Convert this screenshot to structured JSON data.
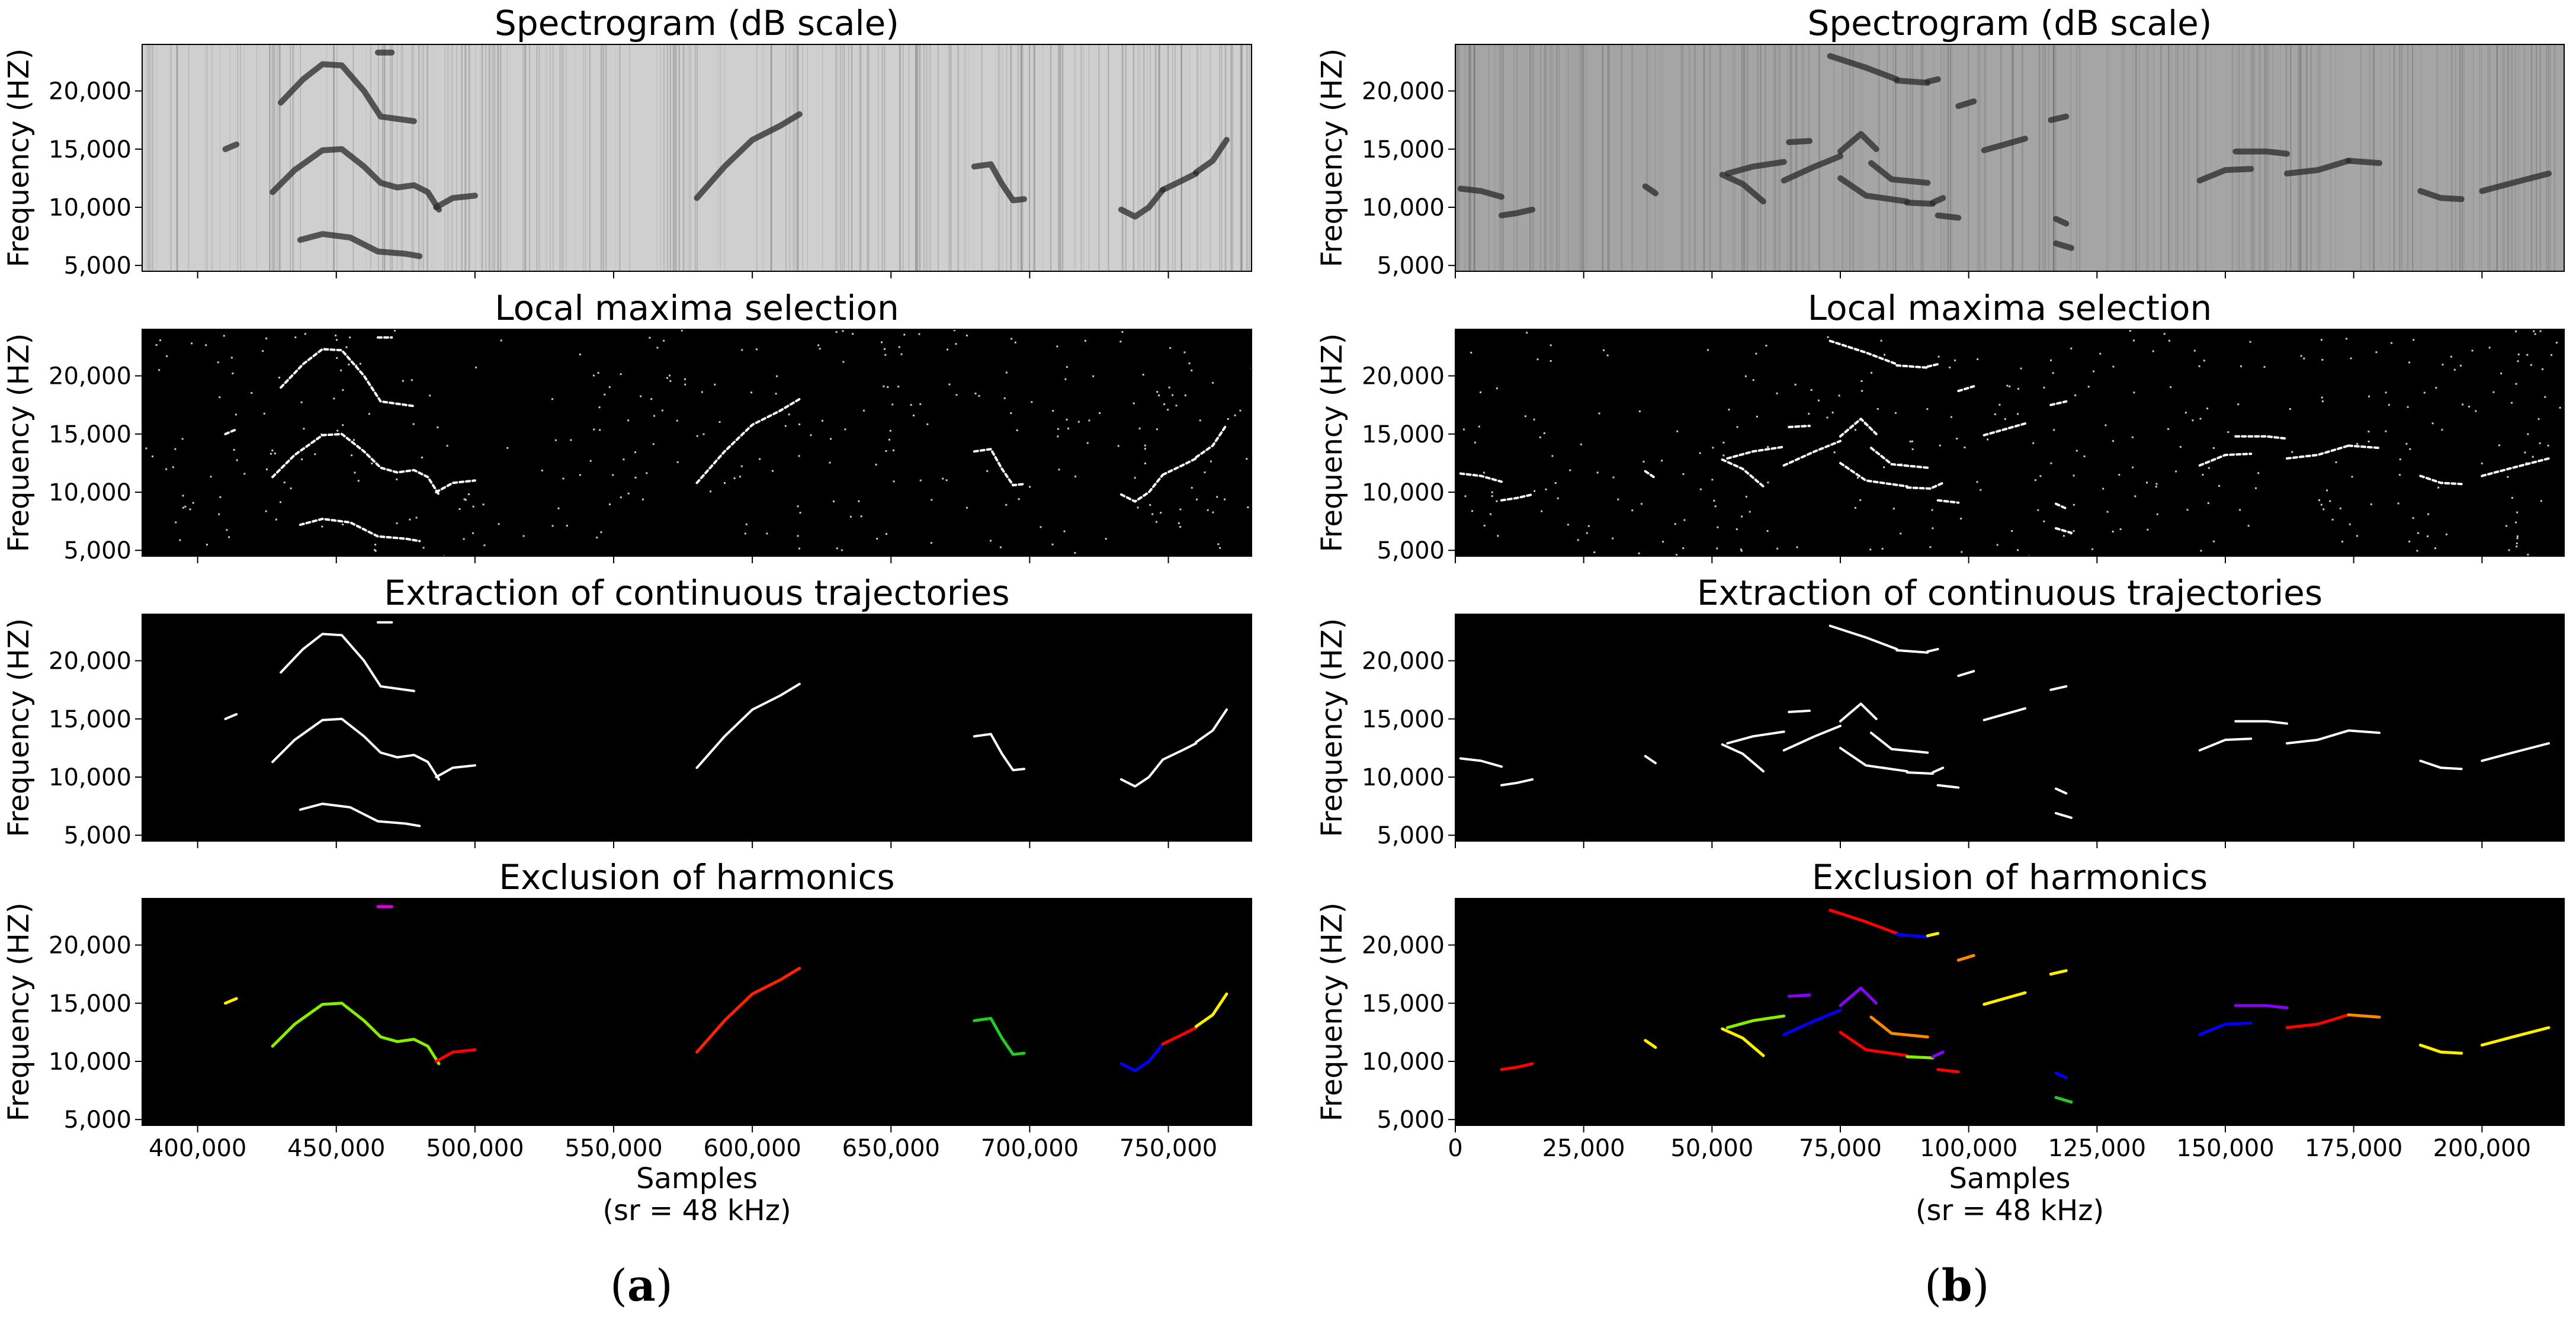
{
  "figure": {
    "caption_a": "a",
    "caption_b": "b",
    "colors": {
      "spectrogram_bg": "#cfcfcf",
      "spectrogram_trace": "#2a2a2a",
      "dark_bg": "#000000",
      "trace_white": "#ffffff",
      "harmonic_palette": [
        "#ff0000",
        "#ffee00",
        "#88ee00",
        "#22cc22",
        "#0000ff",
        "#8800ff",
        "#ff8800"
      ]
    }
  },
  "chart_data": [
    {
      "panel": "a",
      "type": "spectrogram",
      "xlim": [
        380000,
        780000
      ],
      "x_ticks": [
        400000,
        450000,
        500000,
        550000,
        600000,
        650000,
        700000,
        750000
      ],
      "x_tick_labels": [
        "400,000",
        "450,000",
        "500,000",
        "550,000",
        "600,000",
        "650,000",
        "700,000",
        "750,000"
      ],
      "xlabel": "Samples",
      "xlabel2": "(sr = 48 kHz)",
      "ylim": [
        4500,
        24000
      ],
      "y_ticks": [
        5000,
        10000,
        15000,
        20000
      ],
      "y_tick_labels": [
        "5,000",
        "10,000",
        "15,000",
        "20,000"
      ],
      "ylabel": "Frequency (HZ)",
      "subplots": [
        {
          "title": "Spectrogram (dB scale)",
          "style": "spectrogram"
        },
        {
          "title": "Local maxima selection",
          "style": "maxima"
        },
        {
          "title": "Extraction of continuous trajectories",
          "style": "trajectories"
        },
        {
          "title": "Exclusion of harmonics",
          "style": "harmonics"
        }
      ],
      "trajectories": [
        {
          "name": "a1",
          "color": "#ffee00",
          "harmonic": false,
          "points": [
            [
              410000,
              15000
            ],
            [
              412000,
              15200
            ],
            [
              414000,
              15400
            ]
          ]
        },
        {
          "name": "a2",
          "color": "#88ee00",
          "harmonic": false,
          "points": [
            [
              427000,
              11300
            ],
            [
              435000,
              13200
            ],
            [
              445000,
              14900
            ],
            [
              452000,
              15000
            ],
            [
              460000,
              13500
            ],
            [
              466000,
              12100
            ],
            [
              472000,
              11700
            ],
            [
              478000,
              11900
            ],
            [
              483000,
              11300
            ],
            [
              487000,
              9800
            ]
          ]
        },
        {
          "name": "a3",
          "color": "#dd00dd",
          "harmonic": false,
          "points": [
            [
              465000,
              23300
            ],
            [
              470000,
              23300
            ]
          ]
        },
        {
          "name": "a4",
          "color": "#ff0000",
          "harmonic": false,
          "points": [
            [
              486000,
              10000
            ],
            [
              492000,
              10800
            ],
            [
              500000,
              11000
            ]
          ]
        },
        {
          "name": "a5",
          "color": "#ffffff",
          "harmonic": true,
          "points": [
            [
              430000,
              19000
            ],
            [
              438000,
              21000
            ],
            [
              445000,
              22300
            ],
            [
              452000,
              22200
            ],
            [
              460000,
              20000
            ],
            [
              466000,
              17800
            ],
            [
              478000,
              17400
            ]
          ]
        },
        {
          "name": "a6",
          "color": "#ffffff",
          "harmonic": true,
          "points": [
            [
              437000,
              7200
            ],
            [
              445000,
              7700
            ],
            [
              455000,
              7400
            ],
            [
              465000,
              6200
            ],
            [
              475000,
              6000
            ],
            [
              480000,
              5800
            ]
          ]
        },
        {
          "name": "a7",
          "color": "#ff2200",
          "harmonic": false,
          "points": [
            [
              580000,
              10800
            ],
            [
              590000,
              13500
            ],
            [
              600000,
              15800
            ],
            [
              610000,
              17000
            ],
            [
              617000,
              18000
            ]
          ]
        },
        {
          "name": "a8",
          "color": "#22cc22",
          "harmonic": false,
          "points": [
            [
              680000,
              13500
            ],
            [
              686000,
              13700
            ],
            [
              690000,
              12000
            ],
            [
              694000,
              10600
            ],
            [
              698000,
              10700
            ]
          ]
        },
        {
          "name": "a9",
          "color": "#0000ff",
          "harmonic": false,
          "points": [
            [
              733000,
              9800
            ],
            [
              738000,
              9200
            ],
            [
              743000,
              10000
            ],
            [
              748000,
              11500
            ]
          ]
        },
        {
          "name": "a10",
          "color": "#ff0000",
          "harmonic": false,
          "points": [
            [
              748000,
              11500
            ],
            [
              755000,
              12300
            ],
            [
              760000,
              12900
            ]
          ]
        },
        {
          "name": "a11",
          "color": "#ffee00",
          "harmonic": false,
          "points": [
            [
              760000,
              13000
            ],
            [
              766000,
              14000
            ],
            [
              771000,
              15800
            ]
          ]
        }
      ]
    },
    {
      "panel": "b",
      "type": "spectrogram",
      "xlim": [
        0,
        216000
      ],
      "x_ticks": [
        0,
        25000,
        50000,
        75000,
        100000,
        125000,
        150000,
        175000,
        200000
      ],
      "x_tick_labels": [
        "0",
        "25,000",
        "50,000",
        "75,000",
        "100,000",
        "125,000",
        "150,000",
        "175,000",
        "200,000"
      ],
      "xlabel": "Samples",
      "xlabel2": "(sr = 48 kHz)",
      "ylim": [
        4500,
        24000
      ],
      "y_ticks": [
        5000,
        10000,
        15000,
        20000
      ],
      "y_tick_labels": [
        "5,000",
        "10,000",
        "15,000",
        "20,000"
      ],
      "ylabel": "Frequency (HZ)",
      "subplots": [
        {
          "title": "Spectrogram (dB scale)",
          "style": "spectrogram"
        },
        {
          "title": "Local maxima selection",
          "style": "maxima"
        },
        {
          "title": "Extraction of continuous trajectories",
          "style": "trajectories"
        },
        {
          "title": "Exclusion of harmonics",
          "style": "harmonics"
        }
      ],
      "trajectories": [
        {
          "name": "b1",
          "color": "#ff0000",
          "harmonic": false,
          "points": [
            [
              9000,
              9300
            ],
            [
              12000,
              9500
            ],
            [
              15000,
              9800
            ]
          ]
        },
        {
          "name": "b1h",
          "color": "#ffffff",
          "harmonic": true,
          "points": [
            [
              1000,
              11600
            ],
            [
              5000,
              11400
            ],
            [
              9000,
              10900
            ]
          ]
        },
        {
          "name": "b2",
          "color": "#ffee00",
          "harmonic": false,
          "points": [
            [
              37000,
              11800
            ],
            [
              39000,
              11200
            ]
          ]
        },
        {
          "name": "b3",
          "color": "#ffee00",
          "harmonic": false,
          "points": [
            [
              52000,
              12800
            ],
            [
              56000,
              12000
            ],
            [
              60000,
              10500
            ]
          ]
        },
        {
          "name": "b4",
          "color": "#88ee00",
          "harmonic": false,
          "points": [
            [
              53000,
              12900
            ],
            [
              58000,
              13500
            ],
            [
              64000,
              13900
            ]
          ]
        },
        {
          "name": "b5",
          "color": "#0000ff",
          "harmonic": false,
          "points": [
            [
              64000,
              12300
            ],
            [
              70000,
              13500
            ],
            [
              75000,
              14400
            ]
          ]
        },
        {
          "name": "b6",
          "color": "#8800ff",
          "harmonic": false,
          "points": [
            [
              65000,
              15600
            ],
            [
              69000,
              15700
            ]
          ]
        },
        {
          "name": "b7",
          "color": "#8800ff",
          "harmonic": false,
          "points": [
            [
              75000,
              14800
            ],
            [
              79000,
              16300
            ],
            [
              82000,
              15000
            ]
          ]
        },
        {
          "name": "b8",
          "color": "#ff0000",
          "harmonic": false,
          "points": [
            [
              75000,
              12500
            ],
            [
              80000,
              11000
            ],
            [
              88000,
              10500
            ]
          ]
        },
        {
          "name": "b9",
          "color": "#ff8800",
          "harmonic": false,
          "points": [
            [
              81000,
              13800
            ],
            [
              85000,
              12400
            ],
            [
              92000,
              12100
            ]
          ]
        },
        {
          "name": "b10",
          "color": "#88ee00",
          "harmonic": false,
          "points": [
            [
              88000,
              10400
            ],
            [
              93000,
              10300
            ]
          ]
        },
        {
          "name": "b11",
          "color": "#8800ff",
          "harmonic": false,
          "points": [
            [
              93000,
              10400
            ],
            [
              95000,
              10800
            ]
          ]
        },
        {
          "name": "b12",
          "color": "#ff0000",
          "harmonic": false,
          "points": [
            [
              73000,
              23000
            ],
            [
              80000,
              22000
            ],
            [
              86000,
              21000
            ]
          ]
        },
        {
          "name": "b13",
          "color": "#0000ff",
          "harmonic": false,
          "points": [
            [
              86000,
              20900
            ],
            [
              92000,
              20700
            ]
          ]
        },
        {
          "name": "b14",
          "color": "#ffee00",
          "harmonic": false,
          "points": [
            [
              92000,
              20800
            ],
            [
              94000,
              21000
            ]
          ]
        },
        {
          "name": "b15",
          "color": "#ff0000",
          "harmonic": false,
          "points": [
            [
              94000,
              9300
            ],
            [
              98000,
              9100
            ]
          ]
        },
        {
          "name": "b16",
          "color": "#ff8800",
          "harmonic": false,
          "points": [
            [
              98000,
              18700
            ],
            [
              101000,
              19100
            ]
          ]
        },
        {
          "name": "b17",
          "color": "#ffee00",
          "harmonic": false,
          "points": [
            [
              103000,
              14900
            ],
            [
              107000,
              15400
            ],
            [
              111000,
              15900
            ]
          ]
        },
        {
          "name": "b18",
          "color": "#ffee00",
          "harmonic": false,
          "points": [
            [
              116000,
              17500
            ],
            [
              119000,
              17800
            ]
          ]
        },
        {
          "name": "b19",
          "color": "#0000ff",
          "harmonic": false,
          "points": [
            [
              117000,
              9000
            ],
            [
              119000,
              8600
            ]
          ]
        },
        {
          "name": "b20",
          "color": "#22cc22",
          "harmonic": false,
          "points": [
            [
              117000,
              6900
            ],
            [
              120000,
              6500
            ]
          ]
        },
        {
          "name": "b21",
          "color": "#0000ff",
          "harmonic": false,
          "points": [
            [
              145000,
              12300
            ],
            [
              150000,
              13200
            ],
            [
              155000,
              13300
            ]
          ]
        },
        {
          "name": "b22",
          "color": "#8800ff",
          "harmonic": false,
          "points": [
            [
              152000,
              14800
            ],
            [
              158000,
              14800
            ],
            [
              162000,
              14600
            ]
          ]
        },
        {
          "name": "b23",
          "color": "#ff0000",
          "harmonic": false,
          "points": [
            [
              162000,
              12900
            ],
            [
              168000,
              13200
            ],
            [
              174000,
              14000
            ]
          ]
        },
        {
          "name": "b24",
          "color": "#ff8800",
          "harmonic": false,
          "points": [
            [
              174000,
              14000
            ],
            [
              180000,
              13800
            ]
          ]
        },
        {
          "name": "b25",
          "color": "#ffee00",
          "harmonic": false,
          "points": [
            [
              188000,
              11400
            ],
            [
              192000,
              10800
            ],
            [
              196000,
              10700
            ]
          ]
        },
        {
          "name": "b26",
          "color": "#ffee00",
          "harmonic": false,
          "points": [
            [
              200000,
              11400
            ],
            [
              206000,
              12100
            ],
            [
              213000,
              12900
            ]
          ]
        }
      ]
    }
  ]
}
